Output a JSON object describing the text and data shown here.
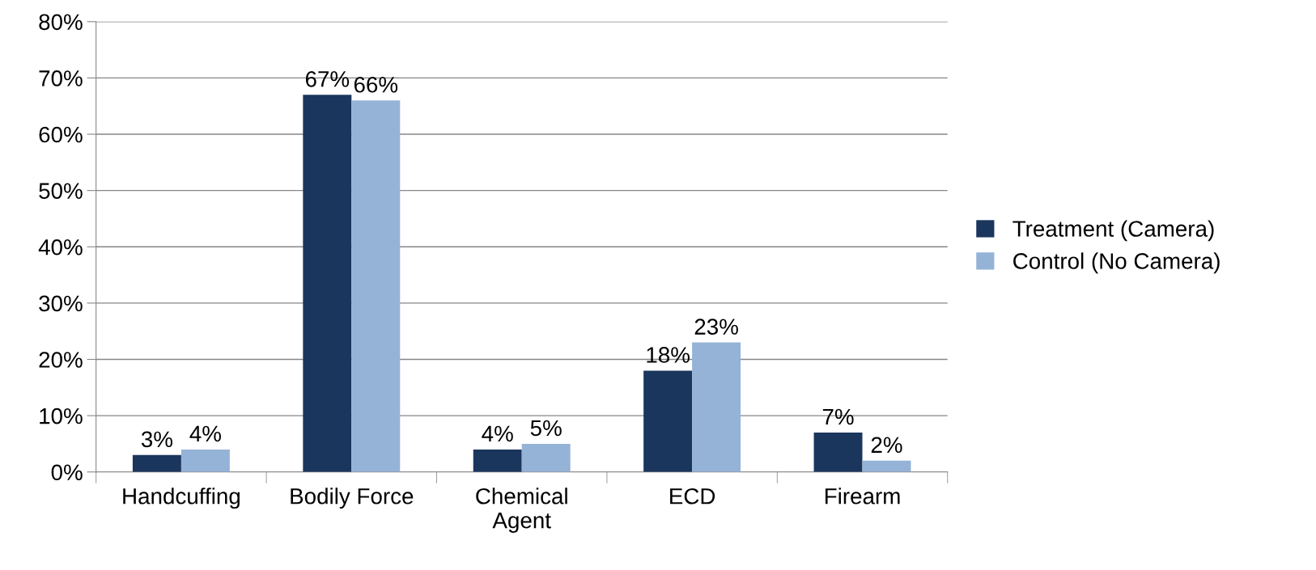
{
  "chart_data": {
    "type": "bar",
    "categories": [
      "Handcuffing",
      "Bodily Force",
      "Chemical\nAgent",
      "ECD",
      "Firearm"
    ],
    "series": [
      {
        "name": "Treatment (Camera)",
        "color": "#1b365d",
        "values": [
          3,
          67,
          4,
          18,
          7
        ],
        "value_labels": [
          "3%",
          "67%",
          "4%",
          "18%",
          "7%"
        ]
      },
      {
        "name": "Control (No Camera)",
        "color": "#95b3d7",
        "values": [
          4,
          66,
          5,
          23,
          2
        ],
        "value_labels": [
          "4%",
          "66%",
          "5%",
          "23%",
          "2%"
        ]
      }
    ],
    "ylim": [
      0,
      80
    ],
    "yticks": [
      {
        "value": 0,
        "label": "0%"
      },
      {
        "value": 10,
        "label": "10%"
      },
      {
        "value": 20,
        "label": "20%"
      },
      {
        "value": 30,
        "label": "30%"
      },
      {
        "value": 40,
        "label": "40%"
      },
      {
        "value": 50,
        "label": "50%"
      },
      {
        "value": 60,
        "label": "60%"
      },
      {
        "value": 70,
        "label": "70%"
      },
      {
        "value": 80,
        "label": "80%"
      }
    ],
    "grid": "y",
    "legend": "right"
  }
}
